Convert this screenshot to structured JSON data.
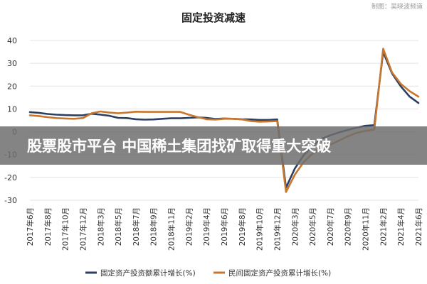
{
  "watermark": "制图：吴晓波频道",
  "banner": {
    "text": "股票股市平台 中国稀土集团找矿取得重大突破"
  },
  "colors": {
    "series1": "#2b3f63",
    "series2": "#c7782e",
    "banner_bg": "#6f6f6f"
  },
  "chart_data": {
    "type": "line",
    "title": "固定投资减速",
    "xlabel": "",
    "ylabel": "",
    "ylim": [
      -30,
      40
    ],
    "yticks": [
      -30,
      -20,
      -10,
      0,
      10,
      20,
      30,
      40
    ],
    "grid": true,
    "legend_position": "bottom",
    "x": [
      "2017年6月",
      "2017年7月",
      "2017年8月",
      "2017年9月",
      "2017年10月",
      "2017年11月",
      "2017年12月",
      "2018年2月",
      "2018年3月",
      "2018年4月",
      "2018年5月",
      "2018年6月",
      "2018年7月",
      "2018年8月",
      "2018年9月",
      "2018年10月",
      "2018年11月",
      "2018年12月",
      "2019年2月",
      "2019年3月",
      "2019年4月",
      "2019年5月",
      "2019年6月",
      "2019年7月",
      "2019年8月",
      "2019年9月",
      "2019年10月",
      "2019年11月",
      "2019年12月",
      "2020年2月",
      "2020年3月",
      "2020年4月",
      "2020年5月",
      "2020年6月",
      "2020年7月",
      "2020年8月",
      "2020年9月",
      "2020年10月",
      "2020年11月",
      "2020年12月",
      "2021年2月",
      "2021年3月",
      "2021年4月",
      "2021年5月",
      "2021年6月"
    ],
    "x_tick_labels": [
      "2017年6月",
      "2017年8月",
      "2017年10月",
      "2017年12月",
      "2018年3月",
      "2018年5月",
      "2018年7月",
      "2018年9月",
      "2018年11月",
      "2019年2月",
      "2019年4月",
      "2019年6月",
      "2019年8月",
      "2019年10月",
      "2019年12月",
      "2020年3月",
      "2020年5月",
      "2020年7月",
      "2020年9月",
      "2020年11月",
      "2021年2月",
      "2021年4月",
      "2021年6月"
    ],
    "series": [
      {
        "name": "固定资产投资额累计增长(%)",
        "values": [
          8.6,
          8.3,
          7.8,
          7.5,
          7.3,
          7.2,
          7.2,
          7.9,
          7.5,
          7.0,
          6.1,
          6.0,
          5.5,
          5.3,
          5.4,
          5.7,
          5.9,
          5.9,
          6.1,
          6.3,
          6.1,
          5.6,
          5.8,
          5.7,
          5.5,
          5.4,
          5.2,
          5.2,
          5.4,
          -24.5,
          -16.1,
          -10.3,
          -6.3,
          -3.1,
          -1.6,
          -0.3,
          0.8,
          1.8,
          2.6,
          2.9,
          35.0,
          25.6,
          19.9,
          15.4,
          12.6
        ]
      },
      {
        "name": "民间固定资产投资累计增长(%)",
        "values": [
          7.2,
          6.9,
          6.4,
          6.0,
          5.8,
          5.7,
          6.0,
          8.1,
          8.9,
          8.4,
          8.1,
          8.4,
          8.8,
          8.7,
          8.7,
          8.7,
          8.7,
          8.7,
          7.5,
          6.4,
          5.5,
          5.3,
          5.7,
          5.7,
          5.4,
          4.7,
          4.4,
          4.5,
          4.7,
          -26.4,
          -18.8,
          -13.3,
          -9.6,
          -7.3,
          -5.7,
          -3.9,
          -2.0,
          -0.5,
          0.4,
          1.0,
          36.4,
          26.0,
          21.0,
          17.8,
          15.4
        ]
      }
    ]
  }
}
